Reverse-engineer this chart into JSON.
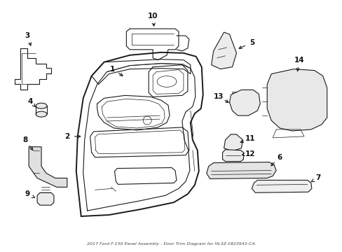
{
  "title": "2017 Ford F-150 Panel Assembly - Door Trim Diagram for HL3Z-1823943-CA",
  "bg": "#ffffff",
  "lc": "#1a1a1a",
  "tc": "#111111",
  "fw": 4.89,
  "fh": 3.6,
  "dpi": 100
}
